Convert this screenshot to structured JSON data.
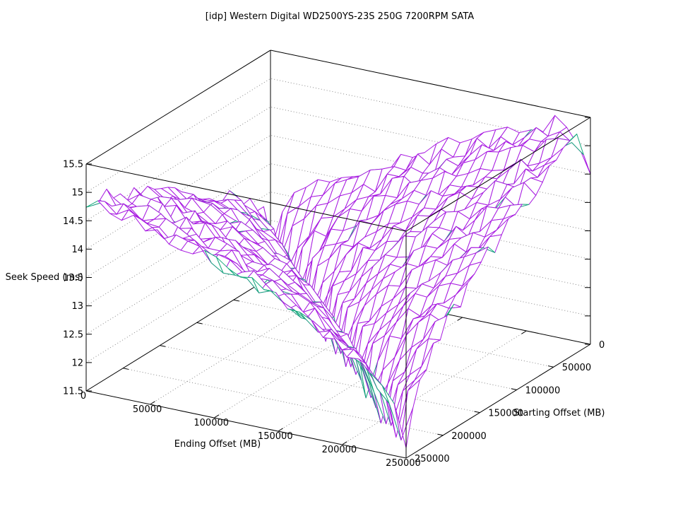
{
  "chart_data": {
    "type": "surface",
    "title": "[idp] Western Digital WD2500YS-23S 250G 7200RPM SATA",
    "xlabel": "Ending Offset (MB)",
    "ylabel": "Starting Offset (MB)",
    "zlabel": "Seek Speed (ms)",
    "x_range": [
      0,
      250000
    ],
    "y_range": [
      0,
      250000
    ],
    "z_range": [
      11.5,
      15.5
    ],
    "x_ticks": [
      0,
      50000,
      100000,
      150000,
      200000,
      250000
    ],
    "x_tick_labels": [
      "0",
      "50000",
      "100000",
      "150000",
      "200000",
      "250000"
    ],
    "y_ticks": [
      0,
      50000,
      100000,
      150000,
      200000,
      250000
    ],
    "y_tick_labels": [
      "0",
      "50000",
      "100000",
      "150000",
      "200000",
      "250000"
    ],
    "z_ticks": [
      11.5,
      12,
      12.5,
      13,
      13.5,
      14,
      14.5,
      15,
      15.5
    ],
    "z_tick_labels": [
      "11.5",
      "12",
      "12.5",
      "13",
      "13.5",
      "14",
      "14.5",
      "15",
      "15.5"
    ],
    "grid": "dotted z-level gridlines on back walls every 0.5 ms; dotted base gridlines every 50000 MB",
    "legend_position": "none",
    "colors": {
      "surface_top": "#a81ce1",
      "surface_bottom": "#16a87c",
      "axis": "#000000",
      "grid": "#8a8a8a",
      "background": "#ffffff"
    },
    "mesh": {
      "rows": 28,
      "cols": 28
    },
    "description": "Seek speed (ms) measured as a function of starting and ending disk offset; deep valley along the diagonal start=end (~11.5-12 ms), rising to ~15.3-15.5 ms for full-stroke forward seeks (right peak) and ~14.9 ms for full-stroke backward seeks (left peak); small notch at the far right corner; teal shows the underside of the surface near the valley floor.",
    "z_samples": {
      "ending_offset": [
        0,
        50000,
        100000,
        150000,
        200000,
        250000
      ],
      "starting_offset": [
        0,
        50000,
        100000,
        150000,
        200000,
        250000
      ],
      "z_by_row_starting_offset": [
        [
          12.1,
          13.4,
          14.1,
          14.6,
          15.1,
          14.6
        ],
        [
          13.3,
          11.8,
          13.4,
          14.1,
          14.6,
          15.1
        ],
        [
          13.8,
          13.2,
          11.8,
          13.4,
          14.1,
          14.6
        ],
        [
          14.2,
          13.8,
          13.2,
          11.8,
          13.4,
          14.1
        ],
        [
          14.6,
          14.2,
          13.8,
          13.2,
          11.5,
          13.3
        ],
        [
          14.9,
          14.6,
          14.2,
          13.7,
          13.1,
          11.8
        ]
      ]
    },
    "surface_model": {
      "base": 11.78,
      "stroke_gain": 3.35,
      "stroke_power": 0.5,
      "forward_asym": 0.38,
      "backward_asym": -0.26,
      "origin_bump": {
        "amp": 0.32,
        "sigma": 0.12
      },
      "valley_dip": {
        "amp": 0.28,
        "center": 0.82,
        "sigma_along": 0.07,
        "sigma_cross": 0.06
      },
      "corner_notch": {
        "amp": 0.9,
        "sigma": 0.035
      },
      "noise_amp": 0.3
    }
  }
}
